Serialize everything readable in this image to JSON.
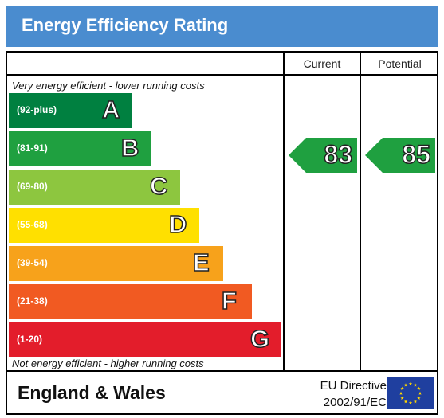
{
  "title": "Energy Efficiency Rating",
  "columns": {
    "current": "Current",
    "potential": "Potential"
  },
  "notes": {
    "top": "Very energy efficient - lower running costs",
    "bottom": "Not energy efficient - higher running costs"
  },
  "footer": {
    "country": "England & Wales",
    "directive_line1": "EU Directive",
    "directive_line2": "2002/91/EC"
  },
  "colors": {
    "title_bar": "#4a8ccf",
    "eu_flag": "#1f3f9f",
    "eu_stars": "#ffd700"
  },
  "chart_data": {
    "type": "bar",
    "title": "Energy Efficiency Rating",
    "categories": [
      "A",
      "B",
      "C",
      "D",
      "E",
      "F",
      "G"
    ],
    "bands": [
      {
        "letter": "A",
        "range": "(92-plus)",
        "min": 92,
        "max": 100,
        "color": "#008040"
      },
      {
        "letter": "B",
        "range": "(81-91)",
        "min": 81,
        "max": 91,
        "color": "#1fa040"
      },
      {
        "letter": "C",
        "range": "(69-80)",
        "min": 69,
        "max": 80,
        "color": "#8dc63f"
      },
      {
        "letter": "D",
        "range": "(55-68)",
        "min": 55,
        "max": 68,
        "color": "#ffe000"
      },
      {
        "letter": "E",
        "range": "(39-54)",
        "min": 39,
        "max": 54,
        "color": "#f7a21b"
      },
      {
        "letter": "F",
        "range": "(21-38)",
        "min": 21,
        "max": 38,
        "color": "#f15a22"
      },
      {
        "letter": "G",
        "range": "(1-20)",
        "min": 1,
        "max": 20,
        "color": "#e31d2b"
      }
    ],
    "series": [
      {
        "name": "Current",
        "value": 83,
        "band": "B",
        "color": "#1fa040"
      },
      {
        "name": "Potential",
        "value": 85,
        "band": "B",
        "color": "#1fa040"
      }
    ]
  }
}
